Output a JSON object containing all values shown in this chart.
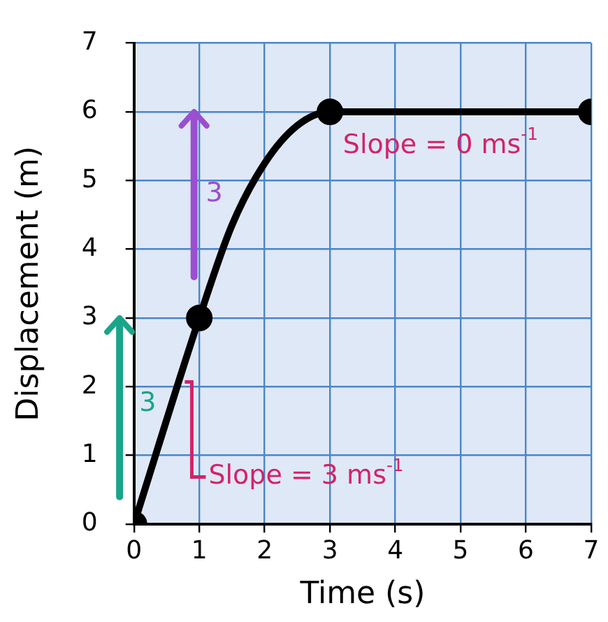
{
  "chart_data": {
    "type": "line",
    "xlabel": "Time (s)",
    "ylabel": "Displacement (m)",
    "xlim": [
      0,
      7
    ],
    "ylim": [
      0,
      7
    ],
    "xticks": [
      0,
      1,
      2,
      3,
      4,
      5,
      6,
      7
    ],
    "yticks": [
      0,
      1,
      2,
      3,
      4,
      5,
      6,
      7
    ],
    "grid": true,
    "legend": false,
    "series": [
      {
        "color": "#000000",
        "marker": "none",
        "x": [
          0,
          1,
          1.5,
          2,
          2.5,
          3,
          7
        ],
        "values": [
          0,
          3,
          4.35,
          5.25,
          5.8,
          6,
          6
        ]
      },
      {
        "type": "scatter",
        "color": "#000000",
        "marker": "circle",
        "x": [
          0,
          1,
          3,
          7
        ],
        "values": [
          0,
          3,
          6,
          6
        ]
      }
    ],
    "annotations": [
      "3",
      "3",
      {
        "text": "Slope = 3 ms$^{-1}$",
        "x": 0.5,
        "y": 1.5
      },
      "Slope = 0 ms$^{-1}$"
    ]
  }
}
